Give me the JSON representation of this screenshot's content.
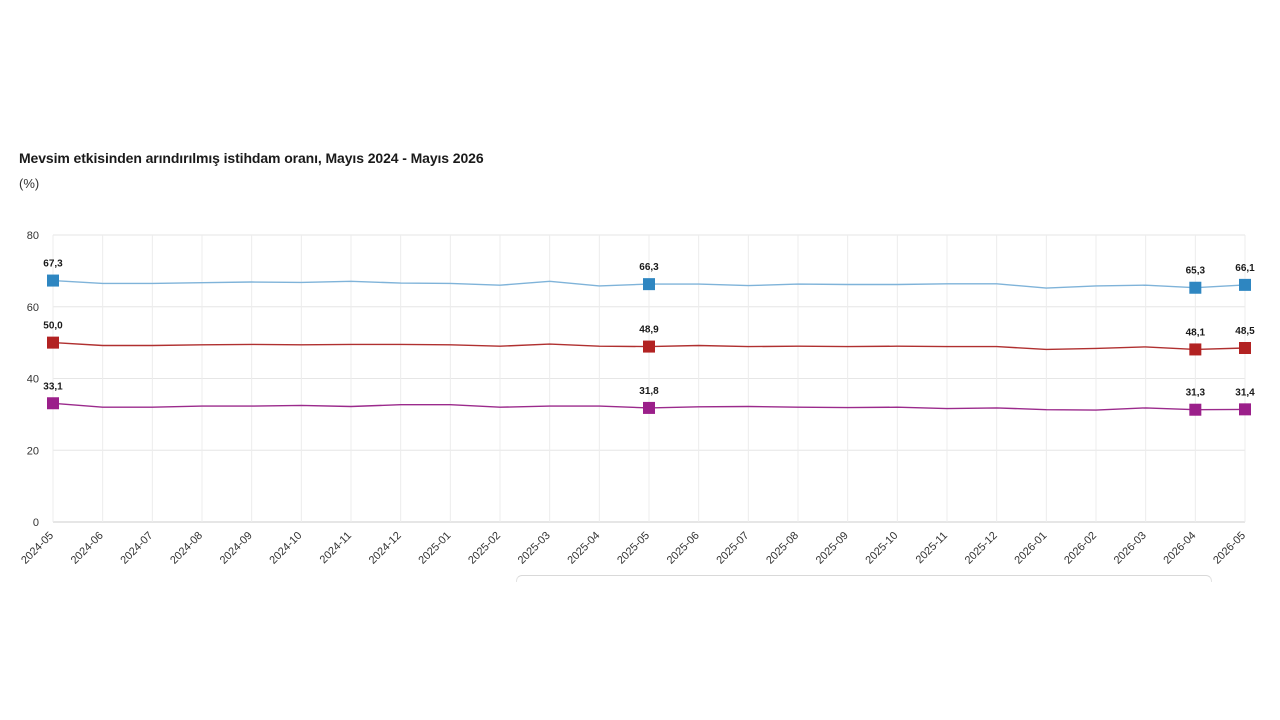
{
  "chart_data": {
    "type": "line",
    "title": "Mevsim etkisinden arındırılmış istihdam oranı, Mayıs 2024 - Mayıs 2026",
    "subtitle": "(%)",
    "xlabel": "",
    "ylabel": "",
    "ylim": [
      0,
      80
    ],
    "yticks": [
      0,
      20,
      40,
      60,
      80
    ],
    "grid": true,
    "x": [
      "2024-05",
      "2024-06",
      "2024-07",
      "2024-08",
      "2024-09",
      "2024-10",
      "2024-11",
      "2024-12",
      "2025-01",
      "2025-02",
      "2025-03",
      "2025-04",
      "2025-05",
      "2025-06",
      "2025-07",
      "2025-08",
      "2025-09",
      "2025-10",
      "2025-11",
      "2025-12",
      "2026-01",
      "2026-02",
      "2026-03",
      "2026-04",
      "2026-05"
    ],
    "series": [
      {
        "color": "#2e86c1",
        "line_color": "#7fb3d9",
        "values": [
          67.3,
          66.5,
          66.5,
          66.7,
          66.9,
          66.8,
          67.1,
          66.6,
          66.5,
          66.0,
          67.1,
          65.8,
          66.3,
          66.3,
          65.9,
          66.3,
          66.2,
          66.2,
          66.4,
          66.4,
          65.2,
          65.8,
          66.0,
          65.3,
          66.1
        ],
        "labels": {
          "0": "67,3",
          "12": "66,3",
          "23": "65,3",
          "24": "66,1"
        }
      },
      {
        "color": "#b22222",
        "line_color": "#b03030",
        "values": [
          50.0,
          49.2,
          49.2,
          49.4,
          49.5,
          49.4,
          49.5,
          49.5,
          49.4,
          49.0,
          49.6,
          49.0,
          48.9,
          49.2,
          48.9,
          49.0,
          48.9,
          49.0,
          48.9,
          48.9,
          48.1,
          48.4,
          48.8,
          48.1,
          48.5
        ],
        "labels": {
          "0": "50,0",
          "12": "48,9",
          "23": "48,1",
          "24": "48,5"
        }
      },
      {
        "color": "#9b1f8a",
        "line_color": "#9b2a8c",
        "values": [
          33.1,
          32.0,
          32.0,
          32.3,
          32.3,
          32.5,
          32.2,
          32.7,
          32.7,
          32.0,
          32.3,
          32.3,
          31.8,
          32.1,
          32.2,
          32.0,
          31.9,
          32.0,
          31.6,
          31.8,
          31.3,
          31.2,
          31.8,
          31.3,
          31.4
        ],
        "labels": {
          "0": "33,1",
          "12": "31,8",
          "23": "31,3",
          "24": "31,4"
        }
      }
    ]
  }
}
